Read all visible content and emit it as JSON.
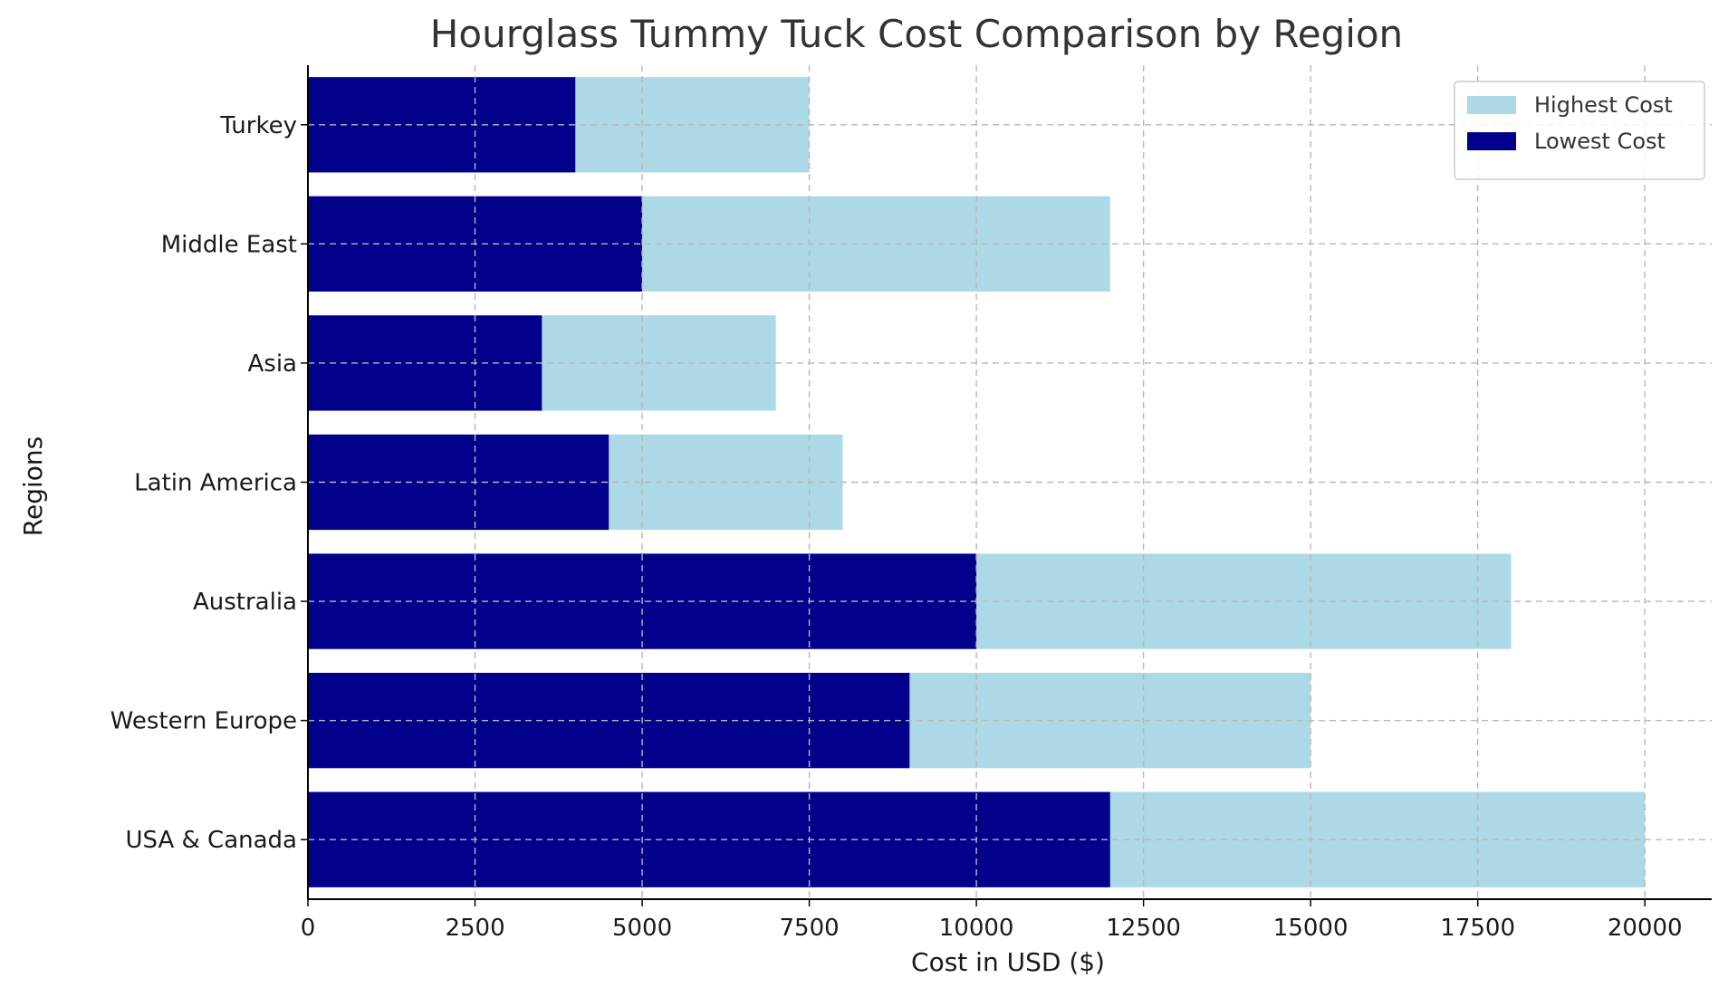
{
  "chart_data": {
    "type": "bar",
    "orientation": "horizontal",
    "title": "Hourglass Tummy Tuck Cost Comparison by Region",
    "xlabel": "Cost in USD ($)",
    "ylabel": "Regions",
    "categories": [
      "USA & Canada",
      "Western Europe",
      "Australia",
      "Latin America",
      "Asia",
      "Middle East",
      "Turkey"
    ],
    "series": [
      {
        "name": "Highest Cost",
        "color": "#add8e6",
        "values": [
          20000,
          15000,
          18000,
          8000,
          7000,
          12000,
          7500
        ]
      },
      {
        "name": "Lowest Cost",
        "color": "#00008b",
        "values": [
          12000,
          9000,
          10000,
          4500,
          3500,
          5000,
          4000
        ]
      }
    ],
    "xlim": [
      0,
      21000
    ],
    "xticks": [
      0,
      2500,
      5000,
      7500,
      10000,
      12500,
      15000,
      17500,
      20000
    ],
    "grid": true,
    "legend_position": "top-right"
  }
}
